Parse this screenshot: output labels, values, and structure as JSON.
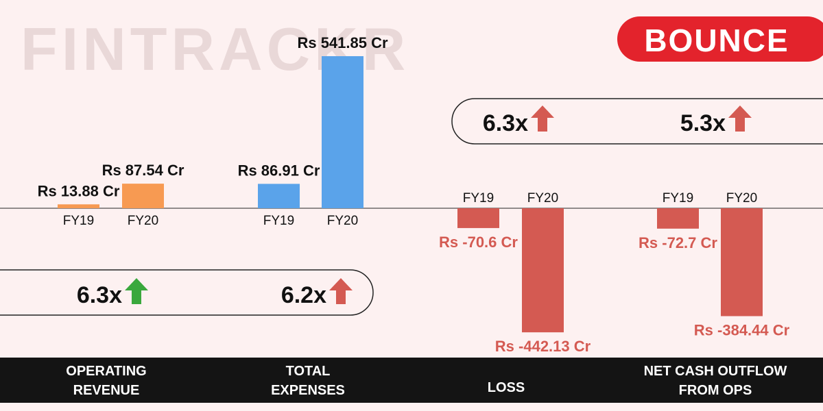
{
  "brand": {
    "watermark": "FINTRACKR",
    "company_logo": "BOUNCE",
    "logo_color": "#e3232c"
  },
  "colors": {
    "background": "#fdf1f1",
    "revenue_bar": "#f79a52",
    "expense_bar": "#5aa3ea",
    "negative_bar": "#d45a52",
    "negative_text": "#d45a52",
    "up_green": "#3aa83d",
    "up_red": "#d45a52",
    "footer": "#141414"
  },
  "growth_badges": [
    {
      "text": "6.3x",
      "arrow": "up-green-arrow-icon"
    },
    {
      "text": "6.2x",
      "arrow": "up-red-arrow-icon"
    },
    {
      "text": "6.3x",
      "arrow": "up-red-arrow-icon"
    },
    {
      "text": "5.3x",
      "arrow": "up-red-arrow-icon"
    }
  ],
  "chart_data": [
    {
      "type": "bar",
      "title": "OPERATING REVENUE",
      "categories": [
        "FY19",
        "FY20"
      ],
      "values": [
        13.88,
        87.54
      ],
      "labels": [
        "Rs 13.88 Cr",
        "Rs 87.54 Cr"
      ],
      "unit": "Rs Cr",
      "growth": "6.3x"
    },
    {
      "type": "bar",
      "title": "TOTAL EXPENSES",
      "categories": [
        "FY19",
        "FY20"
      ],
      "values": [
        86.91,
        541.85
      ],
      "labels": [
        "Rs 86.91 Cr",
        "Rs 541.85 Cr"
      ],
      "unit": "Rs Cr",
      "growth": "6.2x"
    },
    {
      "type": "bar",
      "title": "LOSS",
      "categories": [
        "FY19",
        "FY20"
      ],
      "values": [
        -70.6,
        -442.13
      ],
      "labels": [
        "Rs -70.6 Cr",
        "Rs -442.13 Cr"
      ],
      "unit": "Rs Cr",
      "growth": "6.3x"
    },
    {
      "type": "bar",
      "title": "NET CASH OUTFLOW FROM OPS",
      "categories": [
        "FY19",
        "FY20"
      ],
      "values": [
        -72.7,
        -384.44
      ],
      "labels": [
        "Rs -72.7 Cr",
        "Rs -384.44 Cr"
      ],
      "unit": "Rs Cr",
      "growth": "5.3x"
    }
  ],
  "footer_labels": [
    [
      "OPERATING",
      "REVENUE"
    ],
    [
      "TOTAL",
      "EXPENSES"
    ],
    [
      "LOSS"
    ],
    [
      "NET CASH OUTFLOW",
      "FROM OPS"
    ]
  ]
}
